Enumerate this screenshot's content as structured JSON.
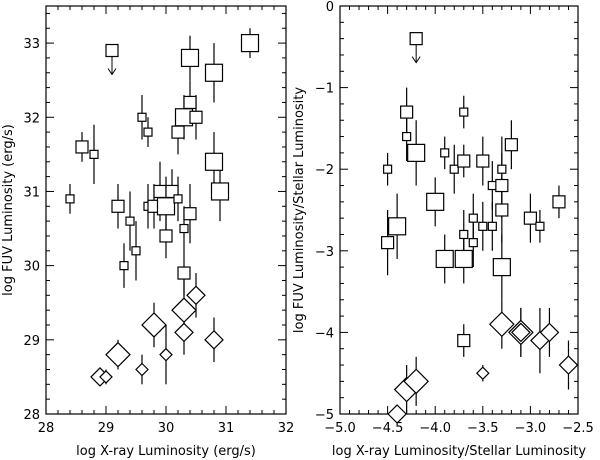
{
  "chart_data": [
    {
      "type": "scatter",
      "xlabel": "log X-ray Luminosity (erg/s)",
      "ylabel": "log FUV Luminosity (erg/s)",
      "xlim": [
        28,
        32
      ],
      "ylim": [
        28,
        33.5
      ],
      "xticks": [
        "28",
        "29",
        "30",
        "31",
        "32"
      ],
      "yticks": [
        "28",
        "29",
        "30",
        "31",
        "32",
        "33"
      ],
      "squares": [
        {
          "x": 28.4,
          "y": 30.9,
          "size": "s",
          "err": [
            0.2,
            0.2
          ]
        },
        {
          "x": 28.6,
          "y": 31.6,
          "size": "m",
          "err": [
            0.2,
            0.2
          ]
        },
        {
          "x": 28.8,
          "y": 31.5,
          "size": "s",
          "err": [
            0.4,
            0.4
          ]
        },
        {
          "x": 29.1,
          "y": 32.9,
          "size": "m",
          "upper": true
        },
        {
          "x": 29.2,
          "y": 30.8,
          "size": "m",
          "err": [
            0.3,
            0.3
          ]
        },
        {
          "x": 29.3,
          "y": 30.0,
          "size": "s",
          "err": [
            0.3,
            0.3
          ]
        },
        {
          "x": 29.4,
          "y": 30.6,
          "size": "s",
          "err": [
            0.4,
            0.4
          ]
        },
        {
          "x": 29.5,
          "y": 30.2,
          "size": "s",
          "err": [
            0.4,
            0.4
          ]
        },
        {
          "x": 29.6,
          "y": 32.0,
          "size": "s",
          "err": [
            0.3,
            0.3
          ]
        },
        {
          "x": 29.7,
          "y": 31.8,
          "size": "s",
          "err": [
            0.2,
            0.2
          ]
        },
        {
          "x": 29.7,
          "y": 30.8,
          "size": "s",
          "err": [
            0.3,
            0.3
          ]
        },
        {
          "x": 29.8,
          "y": 30.8,
          "size": "m",
          "err": [
            0.3,
            0.3
          ]
        },
        {
          "x": 29.9,
          "y": 31.0,
          "size": "m",
          "err": [
            0.4,
            0.4
          ]
        },
        {
          "x": 30.0,
          "y": 30.8,
          "size": "l",
          "err": [
            0.4,
            0.4
          ]
        },
        {
          "x": 30.0,
          "y": 30.4,
          "size": "m",
          "err": [
            0.3,
            0.3
          ]
        },
        {
          "x": 30.1,
          "y": 31.0,
          "size": "m",
          "err": [
            0.3,
            0.3
          ]
        },
        {
          "x": 30.2,
          "y": 31.8,
          "size": "m",
          "err": [
            0.3,
            0.3
          ]
        },
        {
          "x": 30.2,
          "y": 30.9,
          "size": "s",
          "err": [
            0.3,
            0.3
          ]
        },
        {
          "x": 30.3,
          "y": 32.0,
          "size": "l",
          "err": [
            0.3,
            0.3
          ]
        },
        {
          "x": 30.3,
          "y": 30.5,
          "size": "s",
          "err": [
            0.3,
            0.3
          ]
        },
        {
          "x": 30.3,
          "y": 29.9,
          "size": "m",
          "err": [
            0.3,
            0.3
          ]
        },
        {
          "x": 30.4,
          "y": 32.8,
          "size": "l",
          "err": [
            0.3,
            0.3
          ]
        },
        {
          "x": 30.4,
          "y": 32.2,
          "size": "m",
          "err": [
            0.3,
            0.3
          ]
        },
        {
          "x": 30.4,
          "y": 30.7,
          "size": "m",
          "err": [
            0.4,
            0.4
          ]
        },
        {
          "x": 30.5,
          "y": 32.0,
          "size": "m",
          "err": [
            0.3,
            0.3
          ]
        },
        {
          "x": 30.8,
          "y": 32.6,
          "size": "l",
          "err": [
            0.4,
            0.4
          ]
        },
        {
          "x": 30.8,
          "y": 31.4,
          "size": "l",
          "err": [
            0.4,
            0.4
          ]
        },
        {
          "x": 30.9,
          "y": 31.0,
          "size": "l",
          "err": [
            0.4,
            0.4
          ]
        },
        {
          "x": 31.4,
          "y": 33.0,
          "size": "l",
          "err": [
            0.2,
            0.2
          ]
        }
      ],
      "diamonds": [
        {
          "x": 28.9,
          "y": 28.5,
          "size": "m",
          "err": [
            0.1,
            0.1
          ]
        },
        {
          "x": 29.0,
          "y": 28.5,
          "size": "s",
          "err": [
            0.1,
            0.1
          ]
        },
        {
          "x": 29.2,
          "y": 28.8,
          "size": "l",
          "err": [
            0.2,
            0.2
          ]
        },
        {
          "x": 29.6,
          "y": 28.6,
          "size": "s",
          "err": [
            0.2,
            0.2
          ]
        },
        {
          "x": 29.8,
          "y": 29.2,
          "size": "l",
          "err": [
            0.3,
            0.3
          ]
        },
        {
          "x": 30.0,
          "y": 28.8,
          "size": "s",
          "err": [
            0.4,
            0.4
          ]
        },
        {
          "x": 30.3,
          "y": 29.4,
          "size": "l",
          "err": [
            0.4,
            0.4
          ]
        },
        {
          "x": 30.3,
          "y": 29.1,
          "size": "m",
          "err": [
            0.3,
            0.3
          ]
        },
        {
          "x": 30.5,
          "y": 29.6,
          "size": "m",
          "err": [
            0.3,
            0.3
          ]
        },
        {
          "x": 30.8,
          "y": 29.0,
          "size": "m",
          "err": [
            0.3,
            0.3
          ]
        }
      ]
    },
    {
      "type": "scatter",
      "xlabel": "log X-ray Luminosity/Stellar Luminosity",
      "ylabel": "log FUV Luminosity/Stellar Luminosity",
      "xlim": [
        -5.0,
        -2.5
      ],
      "ylim": [
        -5,
        0
      ],
      "xticks": [
        "−5.0",
        "−4.5",
        "−4.0",
        "−3.5",
        "−3.0",
        "−2.5"
      ],
      "yticks": [
        "−5",
        "−4",
        "−3",
        "−2",
        "−1",
        "0"
      ],
      "squares": [
        {
          "x": -4.2,
          "y": -0.4,
          "size": "m",
          "upper": true
        },
        {
          "x": -4.5,
          "y": -2.0,
          "size": "s",
          "err": [
            0.2,
            0.2
          ]
        },
        {
          "x": -4.5,
          "y": -2.9,
          "size": "m",
          "err": [
            0.4,
            0.4
          ]
        },
        {
          "x": -4.4,
          "y": -2.7,
          "size": "l",
          "err": [
            0.4,
            0.4
          ]
        },
        {
          "x": -4.3,
          "y": -1.3,
          "size": "m",
          "err": [
            0.3,
            0.3
          ]
        },
        {
          "x": -4.3,
          "y": -1.6,
          "size": "s",
          "err": [
            0.3,
            0.3
          ]
        },
        {
          "x": -4.2,
          "y": -1.8,
          "size": "l",
          "err": [
            0.4,
            0.4
          ]
        },
        {
          "x": -4.0,
          "y": -2.4,
          "size": "l",
          "err": [
            0.3,
            0.3
          ]
        },
        {
          "x": -3.9,
          "y": -1.8,
          "size": "s",
          "err": [
            0.2,
            0.2
          ]
        },
        {
          "x": -3.9,
          "y": -3.1,
          "size": "l",
          "err": [
            0.3,
            0.3
          ]
        },
        {
          "x": -3.8,
          "y": -2.0,
          "size": "s",
          "err": [
            0.3,
            0.3
          ]
        },
        {
          "x": -3.7,
          "y": -1.3,
          "size": "s",
          "err": [
            0.2,
            0.2
          ]
        },
        {
          "x": -3.7,
          "y": -1.9,
          "size": "m",
          "err": [
            0.2,
            0.2
          ]
        },
        {
          "x": -3.7,
          "y": -2.8,
          "size": "s",
          "err": [
            0.3,
            0.3
          ]
        },
        {
          "x": -3.7,
          "y": -3.1,
          "size": "l",
          "err": [
            0.3,
            0.3
          ]
        },
        {
          "x": -3.6,
          "y": -2.6,
          "size": "s",
          "err": [
            0.3,
            0.3
          ]
        },
        {
          "x": -3.6,
          "y": -2.9,
          "size": "s",
          "err": [
            0.3,
            0.3
          ]
        },
        {
          "x": -3.5,
          "y": -1.9,
          "size": "m",
          "err": [
            0.3,
            0.3
          ]
        },
        {
          "x": -3.5,
          "y": -2.7,
          "size": "s",
          "err": [
            0.3,
            0.3
          ]
        },
        {
          "x": -3.4,
          "y": -2.2,
          "size": "s",
          "err": [
            0.3,
            0.3
          ]
        },
        {
          "x": -3.4,
          "y": -2.7,
          "size": "s",
          "err": [
            0.3,
            0.3
          ]
        },
        {
          "x": -3.3,
          "y": -2.0,
          "size": "s",
          "err": [
            0.4,
            0.4
          ]
        },
        {
          "x": -3.3,
          "y": -2.2,
          "size": "m",
          "err": [
            0.4,
            0.4
          ]
        },
        {
          "x": -3.3,
          "y": -2.5,
          "size": "m",
          "err": [
            0.4,
            0.4
          ]
        },
        {
          "x": -3.3,
          "y": -3.2,
          "size": "l",
          "err": [
            0.4,
            0.4
          ]
        },
        {
          "x": -3.2,
          "y": -1.7,
          "size": "m",
          "err": [
            0.3,
            0.3
          ]
        },
        {
          "x": -3.0,
          "y": -2.6,
          "size": "m",
          "err": [
            0.3,
            0.3
          ]
        },
        {
          "x": -2.9,
          "y": -2.7,
          "size": "s",
          "err": [
            0.2,
            0.2
          ]
        },
        {
          "x": -2.7,
          "y": -2.4,
          "size": "m",
          "err": [
            0.2,
            0.2
          ]
        },
        {
          "x": -3.7,
          "y": -4.1,
          "size": "m",
          "err": [
            0.2,
            0.2
          ]
        }
      ],
      "diamonds": [
        {
          "x": -4.4,
          "y": -5.0,
          "size": "m",
          "err": [
            0.1,
            0.1
          ]
        },
        {
          "x": -4.3,
          "y": -4.7,
          "size": "l",
          "err": [
            0.3,
            0.3
          ]
        },
        {
          "x": -4.2,
          "y": -4.6,
          "size": "l",
          "err": [
            0.3,
            0.3
          ]
        },
        {
          "x": -3.5,
          "y": -4.5,
          "size": "s",
          "err": [
            0.1,
            0.1
          ]
        },
        {
          "x": -3.3,
          "y": -3.9,
          "size": "l",
          "err": [
            0.3,
            0.3
          ]
        },
        {
          "x": -3.1,
          "y": -4.0,
          "size": "l",
          "err": [
            0.3,
            0.3
          ]
        },
        {
          "x": -3.1,
          "y": -4.0,
          "size": "m",
          "err": [
            0.3,
            0.3
          ]
        },
        {
          "x": -2.9,
          "y": -4.1,
          "size": "m",
          "err": [
            0.4,
            0.4
          ]
        },
        {
          "x": -2.8,
          "y": -4.0,
          "size": "m",
          "err": [
            0.3,
            0.3
          ]
        },
        {
          "x": -2.6,
          "y": -4.4,
          "size": "m",
          "err": [
            0.3,
            0.3
          ]
        }
      ]
    }
  ]
}
